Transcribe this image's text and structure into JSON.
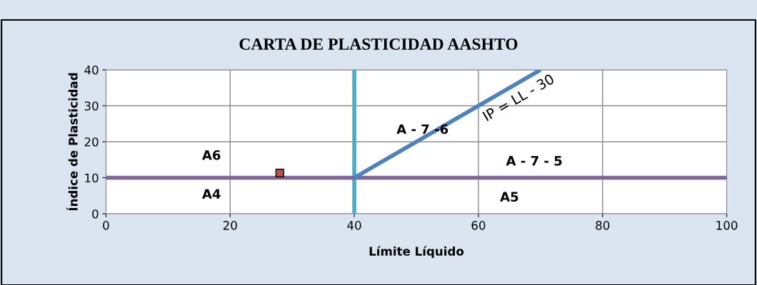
{
  "chart_data": {
    "type": "scatter",
    "title": "CARTA DE PLASTICIDAD AASHTO",
    "xlabel": "Límite Líquido",
    "ylabel": "Índice de Plasticidad",
    "xlim": [
      0,
      100
    ],
    "xticks": [
      0,
      20,
      40,
      60,
      80,
      100
    ],
    "ylim": [
      0,
      40
    ],
    "yticks": [
      0,
      10,
      20,
      30,
      40
    ],
    "grid": true,
    "legend": false,
    "series": [
      {
        "type": "line",
        "name": "IP = LL - 30",
        "color": "#4f81bd",
        "x": [
          40,
          70
        ],
        "values": [
          10,
          40
        ],
        "marker": "none",
        "line_style": "solid"
      },
      {
        "color": "#c0504d",
        "x": [
          28
        ],
        "values": [
          11.3
        ],
        "marker": "square"
      }
    ],
    "ref_lines": [
      {
        "axis": "x",
        "value": 40,
        "color": "#4bacc6",
        "line_style": "solid"
      },
      {
        "axis": "y",
        "value": 10,
        "color": "#8064a2",
        "line_style": "solid"
      }
    ],
    "annotations": [
      "A6",
      "A4",
      "A - 7 -6",
      "A - 7 - 5",
      "A5"
    ]
  }
}
